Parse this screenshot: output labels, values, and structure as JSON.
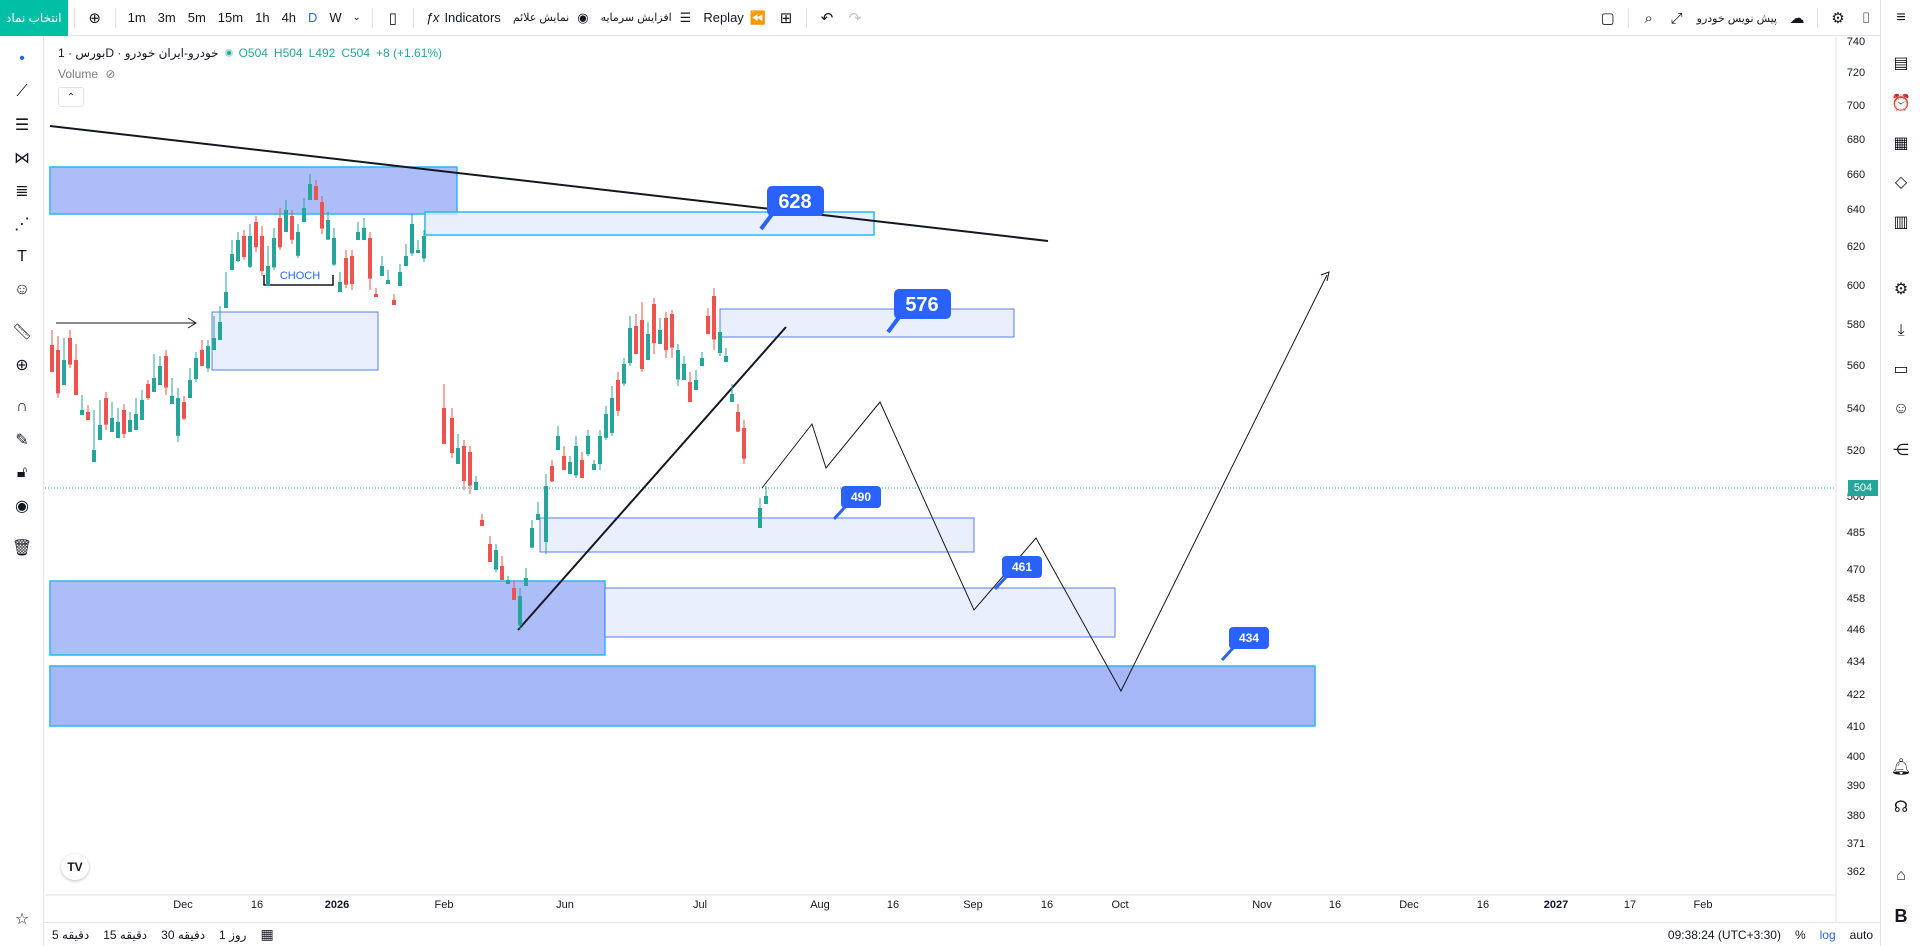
{
  "toolbar": {
    "symbol_button": "انتخاب نماد",
    "add_icon": "plus-circle-icon",
    "timeframes": [
      "1m",
      "3m",
      "5m",
      "15m",
      "1h",
      "4h",
      "D",
      "W"
    ],
    "active_timeframe": "D",
    "indicators_label": "Indicators",
    "show_markers_label": "نمایش علائم",
    "capital_increase_label": "افزایش سرمایه",
    "replay_label": "Replay",
    "right_title": "پیش نویس خودرو"
  },
  "legend": {
    "exchange": "بورس",
    "interval": "1D",
    "symbol": "خودرو-ایران خودرو",
    "open": "O504",
    "high": "H504",
    "low": "L492",
    "close": "C504",
    "change": "+8 (+1.61%)",
    "volume_label": "Volume"
  },
  "annotations": {
    "choch_label": "CHOCH",
    "label_628": "628",
    "label_576": "576",
    "label_490": "490",
    "label_461": "461",
    "label_434": "434"
  },
  "price_axis": {
    "ticks": [
      "740",
      "720",
      "700",
      "680",
      "660",
      "640",
      "620",
      "600",
      "580",
      "560",
      "540",
      "520",
      "500",
      "485",
      "470",
      "458",
      "446",
      "434",
      "422",
      "410",
      "400",
      "390",
      "380",
      "371",
      "362"
    ],
    "last_price": "504"
  },
  "time_axis": {
    "ticks": [
      "Dec",
      "16",
      "2026",
      "Feb",
      "Jun",
      "Jul",
      "Aug",
      "16",
      "Sep",
      "16",
      "Oct",
      "Nov",
      "16",
      "Dec",
      "16",
      "2027",
      "17",
      "Feb"
    ]
  },
  "bottom": {
    "ranges": [
      "5 دقیقه",
      "15 دقیقه",
      "30 دقیقه",
      "1 روز"
    ],
    "time": "09:38:24 (UTC+3:30)",
    "percent": "%",
    "log": "log",
    "auto": "auto"
  },
  "colors": {
    "up": "#26a69a",
    "down": "#ef5350",
    "zone_fill": "#5b7cf0",
    "zone_light": "#e3ebfb",
    "zone_border": "#29b6f6",
    "label_bg": "#2962ff",
    "accent": "#00bfa5"
  }
}
